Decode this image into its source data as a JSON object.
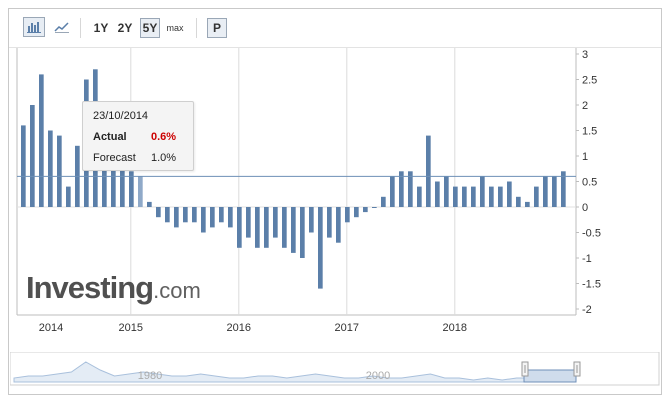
{
  "toolbar": {
    "bar_chart_icon": "bar-chart-icon",
    "line_chart_icon": "line-chart-icon",
    "range_1y": "1Y",
    "range_2y": "2Y",
    "range_5y": "5Y",
    "range_max": "max",
    "p_button": "P"
  },
  "tooltip": {
    "date": "23/10/2014",
    "actual_label": "Actual",
    "actual_value": "0.6%",
    "forecast_label": "Forecast",
    "forecast_value": "1.0%"
  },
  "watermark": {
    "brand": "Investing",
    "suffix": ".com"
  },
  "navigator": {
    "labels": [
      "1980",
      "2000"
    ]
  },
  "colors": {
    "bar": "#5b7fa9",
    "highlight_bar": "#8fa9c8",
    "actual_value": "#cc0000",
    "reference_line": "#6d8fb6"
  },
  "chart_data": {
    "type": "bar",
    "x_tick_labels": [
      "2014",
      "2015",
      "2016",
      "2017",
      "2018"
    ],
    "y_tick_labels": [
      "3",
      "2.5",
      "2",
      "1.5",
      "1",
      "0.5",
      "0",
      "-0.5",
      "-1",
      "-1.5",
      "-2"
    ],
    "ylim": [
      -2,
      3
    ],
    "reference_value": 0.6,
    "highlight_index": 13,
    "values": [
      1.6,
      2.0,
      2.6,
      1.5,
      1.4,
      0.4,
      1.2,
      2.5,
      2.7,
      1.9,
      1.1,
      1.0,
      0.7,
      0.6,
      0.1,
      -0.2,
      -0.3,
      -0.4,
      -0.3,
      -0.3,
      -0.5,
      -0.4,
      -0.3,
      -0.4,
      -0.8,
      -0.6,
      -0.8,
      -0.8,
      -0.6,
      -0.8,
      -0.9,
      -1.0,
      -0.5,
      -1.6,
      -0.6,
      -0.7,
      -0.3,
      -0.2,
      -0.1,
      0.0,
      0.2,
      0.6,
      0.7,
      0.7,
      0.4,
      1.4,
      0.5,
      0.6,
      0.4,
      0.4,
      0.4,
      0.6,
      0.4,
      0.4,
      0.5,
      0.2,
      0.1,
      0.4,
      0.6,
      0.6,
      0.7
    ],
    "navigator_series": [
      0.2,
      0.3,
      0.3,
      0.4,
      0.5,
      1.0,
      0.6,
      0.3,
      0.4,
      0.5,
      0.4,
      0.3,
      0.3,
      0.4,
      0.3,
      0.2,
      0.2,
      0.3,
      0.3,
      0.2,
      0.3,
      0.4,
      0.3,
      0.2,
      0.2,
      0.3,
      0.2,
      0.2,
      0.3,
      0.4,
      0.2,
      0.2,
      0.1,
      0.2,
      0.1,
      0.2,
      0.2,
      0.3,
      0.2,
      0.2
    ]
  }
}
